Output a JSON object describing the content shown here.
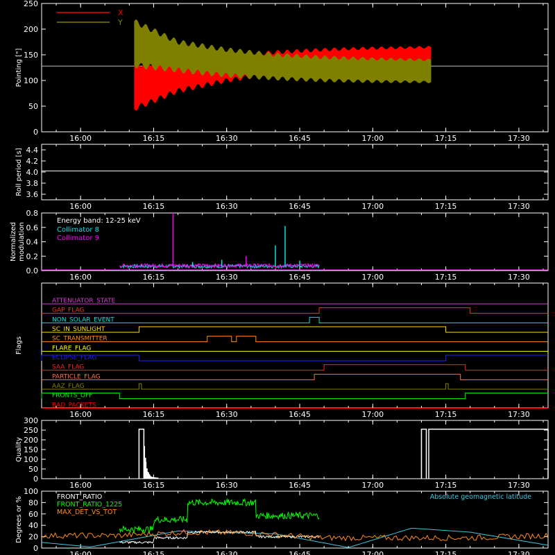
{
  "time_axis": {
    "start": "15:52",
    "end": "17:36",
    "ticks": [
      "16:00",
      "16:15",
      "16:30",
      "16:45",
      "17:00",
      "17:15",
      "17:30"
    ]
  },
  "colors": {
    "background": "#000000",
    "axes": "#ffffff",
    "x": "#ff0000",
    "y": "#808000",
    "cyan": "#00e5e5",
    "magenta": "#ff00ff",
    "green": "#00ff00",
    "orange": "#ff8c1a",
    "sky": "#40c8e0"
  },
  "chart_data": [
    {
      "type": "area",
      "ylabel": "Pointing [\"]",
      "ylim": [
        0,
        250
      ],
      "yticks": [
        0,
        50,
        100,
        150,
        200,
        250
      ],
      "legend_position": "top-left",
      "reference_line": 128,
      "series": [
        {
          "name": "X",
          "color": "#ff0000",
          "x": [
            "16:11",
            "16:20",
            "16:30",
            "16:40",
            "16:50",
            "17:00",
            "17:12"
          ],
          "low": [
            45,
            80,
            100,
            115,
            125,
            128,
            130
          ],
          "high": [
            130,
            140,
            148,
            155,
            160,
            163,
            165
          ]
        },
        {
          "name": "Y",
          "color": "#808000",
          "x": [
            "16:11",
            "16:20",
            "16:30",
            "16:40",
            "16:50",
            "17:00",
            "17:12"
          ],
          "low": [
            130,
            120,
            110,
            104,
            100,
            98,
            97
          ],
          "high": [
            215,
            175,
            160,
            150,
            145,
            142,
            140
          ]
        }
      ]
    },
    {
      "type": "line",
      "ylabel": "Roll period [s]",
      "ylim": [
        3.5,
        4.5
      ],
      "yticks": [
        3.6,
        3.8,
        4.0,
        4.2,
        4.4
      ],
      "series": [
        {
          "x": [
            "15:52",
            "17:36"
          ],
          "y": [
            4.02,
            4.02
          ]
        }
      ]
    },
    {
      "type": "line",
      "ylabel": "Normalized modulation",
      "ylim": [
        0,
        0.8
      ],
      "yticks": [
        0.0,
        0.2,
        0.4,
        0.6,
        0.8
      ],
      "legend_position": "top-left",
      "annotation": "Energy band: 12-25 keV",
      "data_window": [
        "16:08",
        "16:49"
      ],
      "spikes": [
        {
          "x": "16:19",
          "y": 0.8,
          "series": 1
        },
        {
          "x": "16:34",
          "y": 0.2,
          "series": 1
        },
        {
          "x": "16:40",
          "y": 0.35,
          "series": 0
        },
        {
          "x": "16:42",
          "y": 0.62,
          "series": 0
        },
        {
          "x": "16:23",
          "y": 0.12,
          "series": 0
        },
        {
          "x": "16:29",
          "y": 0.15,
          "series": 0
        },
        {
          "x": "16:45",
          "y": 0.14,
          "series": 0
        }
      ],
      "series": [
        {
          "name": "Collimator 8",
          "color": "#00e5e5",
          "baseline": 0.06
        },
        {
          "name": "Collimator 9",
          "color": "#ff00ff",
          "baseline": 0.07
        }
      ]
    },
    {
      "type": "line",
      "ylabel": "Flags",
      "series": [
        {
          "name": "ATTENUATOR_STATE",
          "color": "#d040d0",
          "changes": []
        },
        {
          "name": "GAP_FLAG",
          "color": "#ff3020",
          "changes": [
            [
              "16:49",
              1
            ],
            [
              "17:20",
              0
            ]
          ]
        },
        {
          "name": "NON_SOLAR_EVENT",
          "color": "#00e5e5",
          "changes": [
            [
              "16:47",
              1
            ],
            [
              "16:49",
              0
            ]
          ]
        },
        {
          "name": "SC_IN_SUNLIGHT",
          "color": "#ffe000",
          "changes": [
            [
              "16:12",
              1
            ],
            [
              "17:15",
              0
            ]
          ]
        },
        {
          "name": "SC_TRANSMITTER",
          "color": "#ff8c1a",
          "changes": [
            [
              "16:26",
              1
            ],
            [
              "16:31",
              0
            ],
            [
              "16:32",
              1
            ],
            [
              "16:36",
              0
            ]
          ]
        },
        {
          "name": "FLARE_FLAG",
          "color": "#ffff00",
          "changes": []
        },
        {
          "name": "ECLIPSE_FLAG",
          "color": "#2020ff",
          "changes": [
            [
              "15:52",
              1
            ],
            [
              "16:12",
              0
            ],
            [
              "17:15",
              1
            ]
          ]
        },
        {
          "name": "SAA_FLAG",
          "color": "#ff2020",
          "changes": [
            [
              "16:50",
              1
            ],
            [
              "17:19",
              0
            ]
          ]
        },
        {
          "name": "PARTICLE_FLAG",
          "color": "#ff7040",
          "changes": [
            [
              "16:48",
              1
            ],
            [
              "17:18",
              0
            ]
          ]
        },
        {
          "name": "AAZ_FLAG",
          "color": "#808000",
          "changes": [
            [
              "16:12",
              1
            ],
            [
              "16:12.5",
              0
            ],
            [
              "17:15",
              1
            ],
            [
              "17:15.5",
              0
            ]
          ]
        },
        {
          "name": "FRONTS_OFF",
          "color": "#00ff00",
          "changes": [
            [
              "15:52",
              1
            ],
            [
              "16:08",
              0
            ],
            [
              "17:19",
              1
            ]
          ]
        },
        {
          "name": "BAD_PACKETS",
          "color": "#ff0000",
          "changes": []
        }
      ]
    },
    {
      "type": "bar",
      "ylabel": "Quality",
      "ylim": [
        0,
        300
      ],
      "yticks": [
        0,
        50,
        100,
        150,
        200,
        250,
        300
      ],
      "blocks": [
        {
          "start": "16:12",
          "end": "16:13",
          "value": 255
        },
        {
          "start": "17:10",
          "end": "17:11",
          "value": 255
        },
        {
          "start": "17:11.5",
          "end": "17:36",
          "value": 255
        }
      ],
      "decay": {
        "start": "16:13",
        "end": "16:16",
        "from": 255,
        "to": 5
      }
    },
    {
      "type": "line",
      "ylabel": "Degrees or %",
      "ylim": [
        0,
        100
      ],
      "yticks": [
        0,
        20,
        40,
        60,
        80,
        100
      ],
      "legend_position": "top-left",
      "series": [
        {
          "name": "FRONT_RATIO",
          "color": "#ffffff",
          "x": [
            "16:08",
            "16:15",
            "16:15",
            "16:22",
            "16:22",
            "16:36",
            "16:36",
            "16:49"
          ],
          "y": [
            10,
            10,
            18,
            18,
            28,
            28,
            20,
            20
          ]
        },
        {
          "name": "FRONT_RATIO_1225",
          "color": "#00ff00",
          "x": [
            "16:08",
            "16:15",
            "16:15",
            "16:22",
            "16:22",
            "16:36",
            "16:36",
            "16:49"
          ],
          "y": [
            33,
            33,
            50,
            50,
            80,
            80,
            57,
            57
          ]
        },
        {
          "name": "MAX_DET_VS_TOT",
          "color": "#ff8c1a",
          "x": [
            "15:52",
            "16:08",
            "16:22",
            "16:36",
            "16:49",
            "17:20",
            "17:36"
          ],
          "y": [
            22,
            22,
            28,
            26,
            18,
            18,
            22
          ]
        },
        {
          "name": "Absolute geomagnetic latitude",
          "color": "#40c8e0",
          "x": [
            "15:52",
            "16:02",
            "16:20",
            "16:40",
            "16:55",
            "17:08",
            "17:20",
            "17:36"
          ],
          "y": [
            10,
            2,
            30,
            25,
            1,
            35,
            28,
            5
          ]
        }
      ]
    }
  ]
}
